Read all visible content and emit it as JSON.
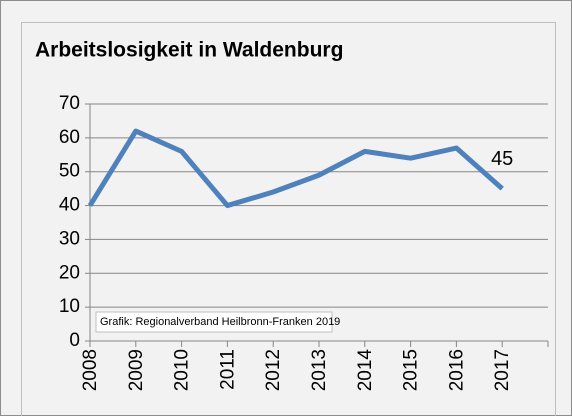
{
  "chart_data": {
    "type": "line",
    "title": "Arbeitslosigkeit in Waldenburg",
    "annotation": "Grafik: Regionalverband Heilbronn-Franken 2019",
    "categories": [
      "2008",
      "2009",
      "2010",
      "2011",
      "2012",
      "2013",
      "2014",
      "2015",
      "2016",
      "2017"
    ],
    "series": [
      {
        "name": "Arbeitslosigkeit",
        "color": "#4f81bd",
        "values": [
          40,
          62,
          56,
          40,
          44,
          49,
          56,
          54,
          57,
          45
        ]
      }
    ],
    "ylim": [
      0,
      70
    ],
    "yticks": [
      0,
      10,
      20,
      30,
      40,
      50,
      60,
      70
    ],
    "grid": true
  }
}
